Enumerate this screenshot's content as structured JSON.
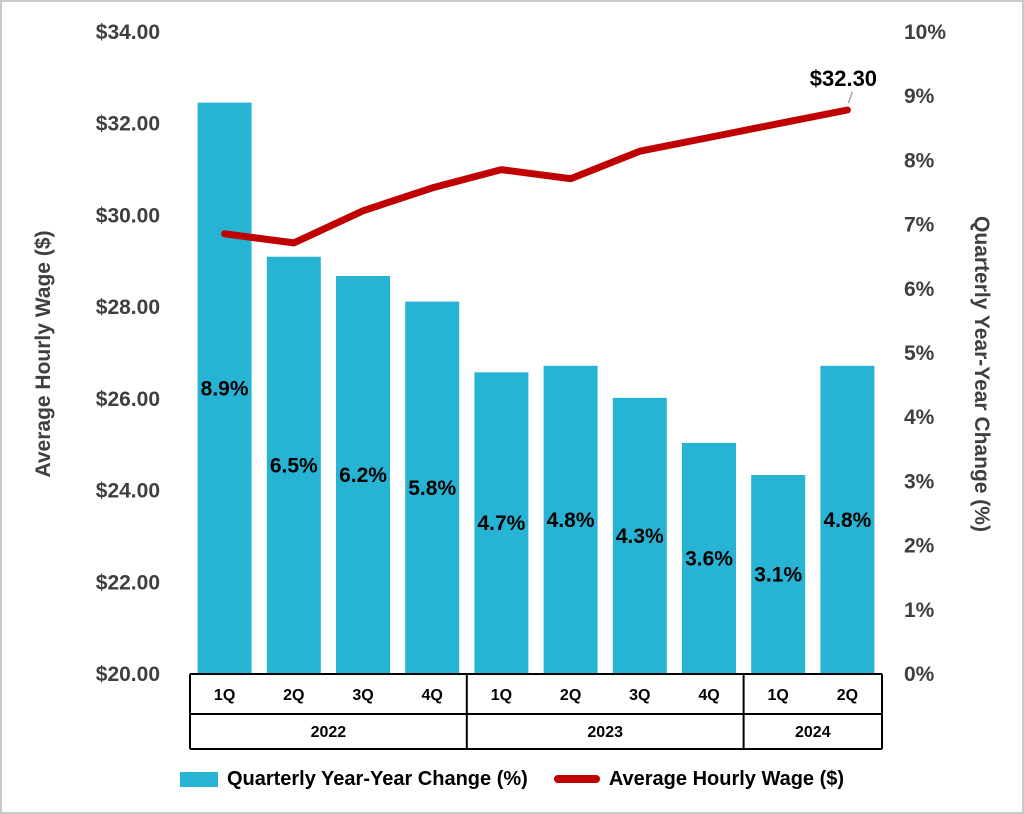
{
  "chart_data": {
    "type": "combo",
    "categories": [
      "1Q",
      "2Q",
      "3Q",
      "4Q",
      "1Q",
      "2Q",
      "3Q",
      "4Q",
      "1Q",
      "2Q"
    ],
    "groups": [
      {
        "label": "2022",
        "span": 4
      },
      {
        "label": "2023",
        "span": 4
      },
      {
        "label": "2024",
        "span": 2
      }
    ],
    "series": [
      {
        "name": "Quarterly Year-Year Change (%)",
        "type": "bar",
        "axis": "right",
        "color": "#26B3D4",
        "values": [
          8.9,
          6.5,
          6.2,
          5.8,
          4.7,
          4.8,
          4.3,
          3.6,
          3.1,
          4.8
        ],
        "labels": [
          "8.9%",
          "6.5%",
          "6.2%",
          "5.8%",
          "4.7%",
          "4.8%",
          "4.3%",
          "3.6%",
          "3.1%",
          "4.8%"
        ]
      },
      {
        "name": "Average Hourly Wage ($)",
        "type": "line",
        "axis": "left",
        "color": "#C00000",
        "values": [
          29.6,
          29.4,
          30.1,
          30.6,
          31.0,
          30.8,
          31.4,
          31.7,
          32.0,
          32.3
        ],
        "point_label": {
          "index": 9,
          "text": "$32.30"
        }
      }
    ],
    "left_axis": {
      "title": "Average Hourly Wage ($)",
      "min": 20,
      "max": 34,
      "step": 2,
      "tick_labels": [
        "$34.00",
        "$32.00",
        "$30.00",
        "$28.00",
        "$26.00",
        "$24.00",
        "$22.00",
        "$20.00"
      ]
    },
    "right_axis": {
      "title": "Quarterly Year-Year Change (%)",
      "min": 0,
      "max": 10,
      "step": 1,
      "tick_labels": [
        "10%",
        "9%",
        "8%",
        "7%",
        "6%",
        "5%",
        "4%",
        "3%",
        "2%",
        "1%",
        "0%"
      ]
    },
    "legend": [
      {
        "label": "Quarterly Year-Year Change (%)",
        "swatch": "bar",
        "color": "#26B3D4"
      },
      {
        "label": "Average Hourly Wage ($)",
        "swatch": "line",
        "color": "#C00000"
      }
    ],
    "grid": "off",
    "text_color": "#3F3F3F",
    "label_color": "#000000",
    "axis_line_color": "#000000"
  }
}
